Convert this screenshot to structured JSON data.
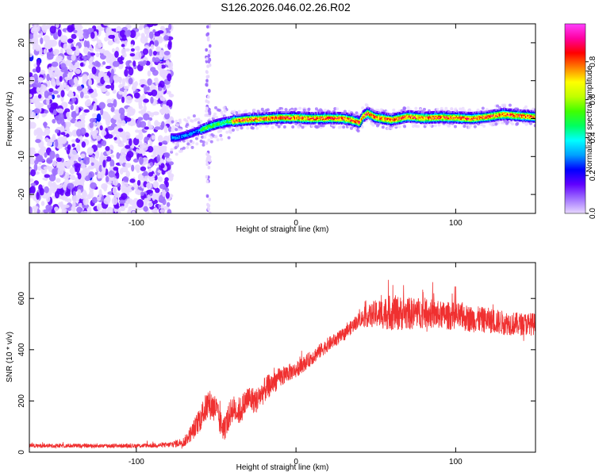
{
  "title": "S126.2026.046.02.26.R02",
  "chart_data": [
    {
      "type": "heatmap",
      "xlabel": "Height of straight line (km)",
      "ylabel": "Frequency (Hz)",
      "xlim": [
        -167,
        150
      ],
      "ylim": [
        -25,
        25
      ],
      "xticks": [
        -100,
        0,
        100
      ],
      "yticks": [
        -20,
        -10,
        0,
        10,
        20
      ],
      "colorbar": {
        "label": "Normalized spectral amplitude",
        "range": [
          0,
          1
        ],
        "ticks": [
          0.0,
          0.2,
          0.4,
          0.6,
          0.8
        ],
        "tick_labels": [
          "0.0",
          "0.2",
          "0.4",
          "0.6",
          "0.8"
        ],
        "colors": [
          "#e8d8ff",
          "#a070ff",
          "#6000ff",
          "#0000ff",
          "#00a0ff",
          "#00ffff",
          "#00ff60",
          "#40ff00",
          "#c0ff00",
          "#ffff00",
          "#ff8000",
          "#ff0000",
          "#ff00a0",
          "#ff40ff"
        ]
      },
      "ridge": {
        "x": [
          -75,
          -70,
          -65,
          -60,
          -55,
          -50,
          -45,
          -40,
          -30,
          -20,
          -10,
          0,
          10,
          20,
          30,
          35,
          40,
          42,
          45,
          50,
          60,
          70,
          80,
          90,
          100,
          110,
          120,
          130,
          140,
          150
        ],
        "y": [
          -5,
          -4.5,
          -3.8,
          -3,
          -2.2,
          -1.5,
          -1,
          -0.6,
          -0.2,
          0,
          0.3,
          0.3,
          0.1,
          0.2,
          0.1,
          -0.3,
          -1,
          0.5,
          1.5,
          0.4,
          -0.3,
          0.6,
          0.2,
          0.4,
          0.3,
          0.1,
          0.5,
          1.2,
          0.8,
          0.5
        ]
      },
      "noise_region_km": [
        -167,
        -78
      ],
      "noise_column_km": -55
    },
    {
      "type": "line",
      "xlabel": "Height of straight line (km)",
      "ylabel": "SNR (10 * v/v)",
      "xlim": [
        -167,
        150
      ],
      "ylim": [
        0,
        740
      ],
      "xticks": [
        -100,
        0,
        100
      ],
      "yticks": [
        0,
        200,
        400,
        600
      ],
      "series": [
        {
          "name": "SNR",
          "color": "#f03030",
          "x": [
            -167,
            -150,
            -120,
            -100,
            -80,
            -70,
            -65,
            -60,
            -55,
            -50,
            -48,
            -45,
            -40,
            -35,
            -30,
            -25,
            -20,
            -15,
            -10,
            -5,
            0,
            10,
            20,
            30,
            40,
            50,
            60,
            70,
            80,
            90,
            100,
            110,
            120,
            130,
            140,
            150
          ],
          "y": [
            25,
            25,
            25,
            25,
            28,
            40,
            80,
            130,
            190,
            170,
            120,
            90,
            170,
            160,
            210,
            200,
            240,
            270,
            290,
            310,
            320,
            370,
            420,
            460,
            520,
            540,
            545,
            540,
            545,
            535,
            530,
            520,
            515,
            505,
            500,
            500
          ],
          "noise_amplitude": [
            8,
            8,
            8,
            8,
            10,
            20,
            35,
            50,
            60,
            55,
            50,
            50,
            55,
            55,
            55,
            50,
            50,
            45,
            40,
            35,
            30,
            30,
            28,
            25,
            30,
            55,
            70,
            65,
            60,
            55,
            55,
            52,
            50,
            48,
            45,
            45
          ]
        }
      ]
    }
  ]
}
